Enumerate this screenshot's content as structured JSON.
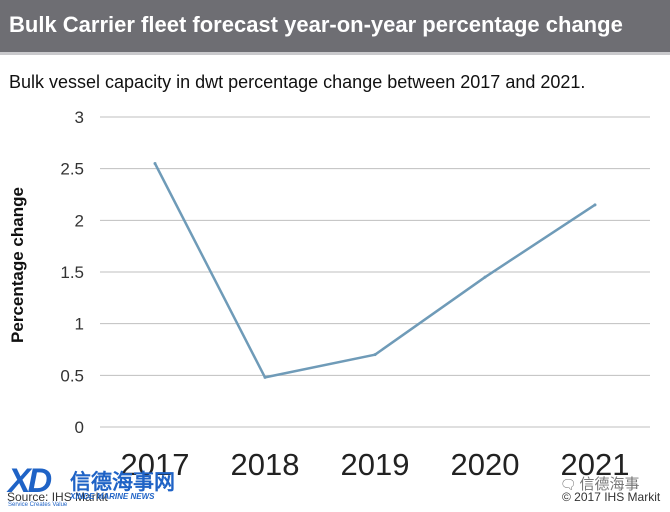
{
  "header": {
    "title": "Bulk Carrier fleet forecast year-on-year percentage change"
  },
  "subtitle": "Bulk vessel capacity in dwt percentage change between 2017 and 2021.",
  "chart_data": {
    "type": "line",
    "title": "Bulk Carrier fleet forecast year-on-year percentage change",
    "subtitle": "Bulk vessel capacity in dwt percentage change between 2017 and 2021.",
    "xlabel": "",
    "ylabel": "Percentage change",
    "categories": [
      "2017",
      "2018",
      "2019",
      "2020",
      "2021"
    ],
    "series": [
      {
        "values": [
          2.55,
          0.48,
          0.7,
          1.45,
          2.15
        ]
      }
    ],
    "ylim": [
      0,
      3
    ],
    "yticks": [
      "0",
      "0.5",
      "1",
      "1.5",
      "2",
      "2.5",
      "3"
    ],
    "grid": true,
    "legend": "none",
    "line_color": "#6f9bb8"
  },
  "footer": {
    "source": "Source: IHS Markit",
    "copyright": "© 2017 IHS Markit"
  },
  "watermarks": {
    "logo_mark": "XD",
    "logo_cn": "信德海事网",
    "logo_en": "XINDE MARINE NEWS",
    "logo_tagline": "Service Creates Value",
    "wechat_label": "信德海事",
    "wechat_icon": "chat-bubble-icon"
  },
  "colors": {
    "title_bar": "#6e6e73",
    "grid": "#bfbfbf",
    "series": "#6f9bb8",
    "watermark": "#1f63c6"
  }
}
